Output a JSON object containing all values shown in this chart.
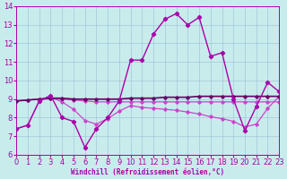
{
  "xlabel": "Windchill (Refroidissement éolien,°C)",
  "xlim": [
    0,
    23
  ],
  "ylim": [
    6,
    14
  ],
  "yticks": [
    6,
    7,
    8,
    9,
    10,
    11,
    12,
    13,
    14
  ],
  "xticks": [
    0,
    1,
    2,
    3,
    4,
    5,
    6,
    7,
    8,
    9,
    10,
    11,
    12,
    13,
    14,
    15,
    16,
    17,
    18,
    19,
    20,
    21,
    22,
    23
  ],
  "bg_color": "#c8ecec",
  "grid_color": "#a0c8d8",
  "lc_main": "#aa00aa",
  "lc_flat": "#660066",
  "lc_curve": "#cc44cc",
  "lc_decline": "#cc44cc",
  "series1_x": [
    0,
    1,
    2,
    3,
    4,
    5,
    6,
    7,
    8,
    9,
    10,
    11,
    12,
    13,
    14,
    15,
    16,
    17,
    18,
    19,
    20,
    21,
    22,
    23
  ],
  "series1_y": [
    7.4,
    7.6,
    8.9,
    9.2,
    8.0,
    7.8,
    6.4,
    7.4,
    8.0,
    8.9,
    11.1,
    11.1,
    12.5,
    13.3,
    13.6,
    13.0,
    13.4,
    11.3,
    11.5,
    9.0,
    7.3,
    8.6,
    9.9,
    9.4
  ],
  "series2_x": [
    0,
    1,
    2,
    3,
    4,
    5,
    6,
    7,
    8,
    9,
    10,
    11,
    12,
    13,
    14,
    15,
    16,
    17,
    18,
    19,
    20,
    21,
    22,
    23
  ],
  "series2_y": [
    8.9,
    8.95,
    9.0,
    9.05,
    9.05,
    9.0,
    9.0,
    9.0,
    9.0,
    9.0,
    9.05,
    9.05,
    9.05,
    9.1,
    9.1,
    9.1,
    9.15,
    9.15,
    9.15,
    9.15,
    9.15,
    9.15,
    9.15,
    9.15
  ],
  "series3_x": [
    0,
    1,
    2,
    3,
    4,
    5,
    6,
    7,
    8,
    9,
    10,
    11,
    12,
    13,
    14,
    15,
    16,
    17,
    18,
    19,
    20,
    21,
    22,
    23
  ],
  "series3_y": [
    7.4,
    7.6,
    8.9,
    9.1,
    8.85,
    8.45,
    7.85,
    7.65,
    7.95,
    8.35,
    8.65,
    8.55,
    8.5,
    8.45,
    8.4,
    8.3,
    8.2,
    8.05,
    7.95,
    7.8,
    7.5,
    7.65,
    8.5,
    9.15
  ],
  "series4_x": [
    0,
    1,
    2,
    3,
    4,
    5,
    6,
    7,
    8,
    9,
    10,
    11,
    12,
    13,
    14,
    15,
    16,
    17,
    18,
    19,
    20,
    21,
    22,
    23
  ],
  "series4_y": [
    8.9,
    8.95,
    9.0,
    9.05,
    9.0,
    8.95,
    8.9,
    8.85,
    8.85,
    8.85,
    8.85,
    8.85,
    8.85,
    8.85,
    8.85,
    8.85,
    8.85,
    8.85,
    8.85,
    8.85,
    8.85,
    8.85,
    8.85,
    8.85
  ]
}
